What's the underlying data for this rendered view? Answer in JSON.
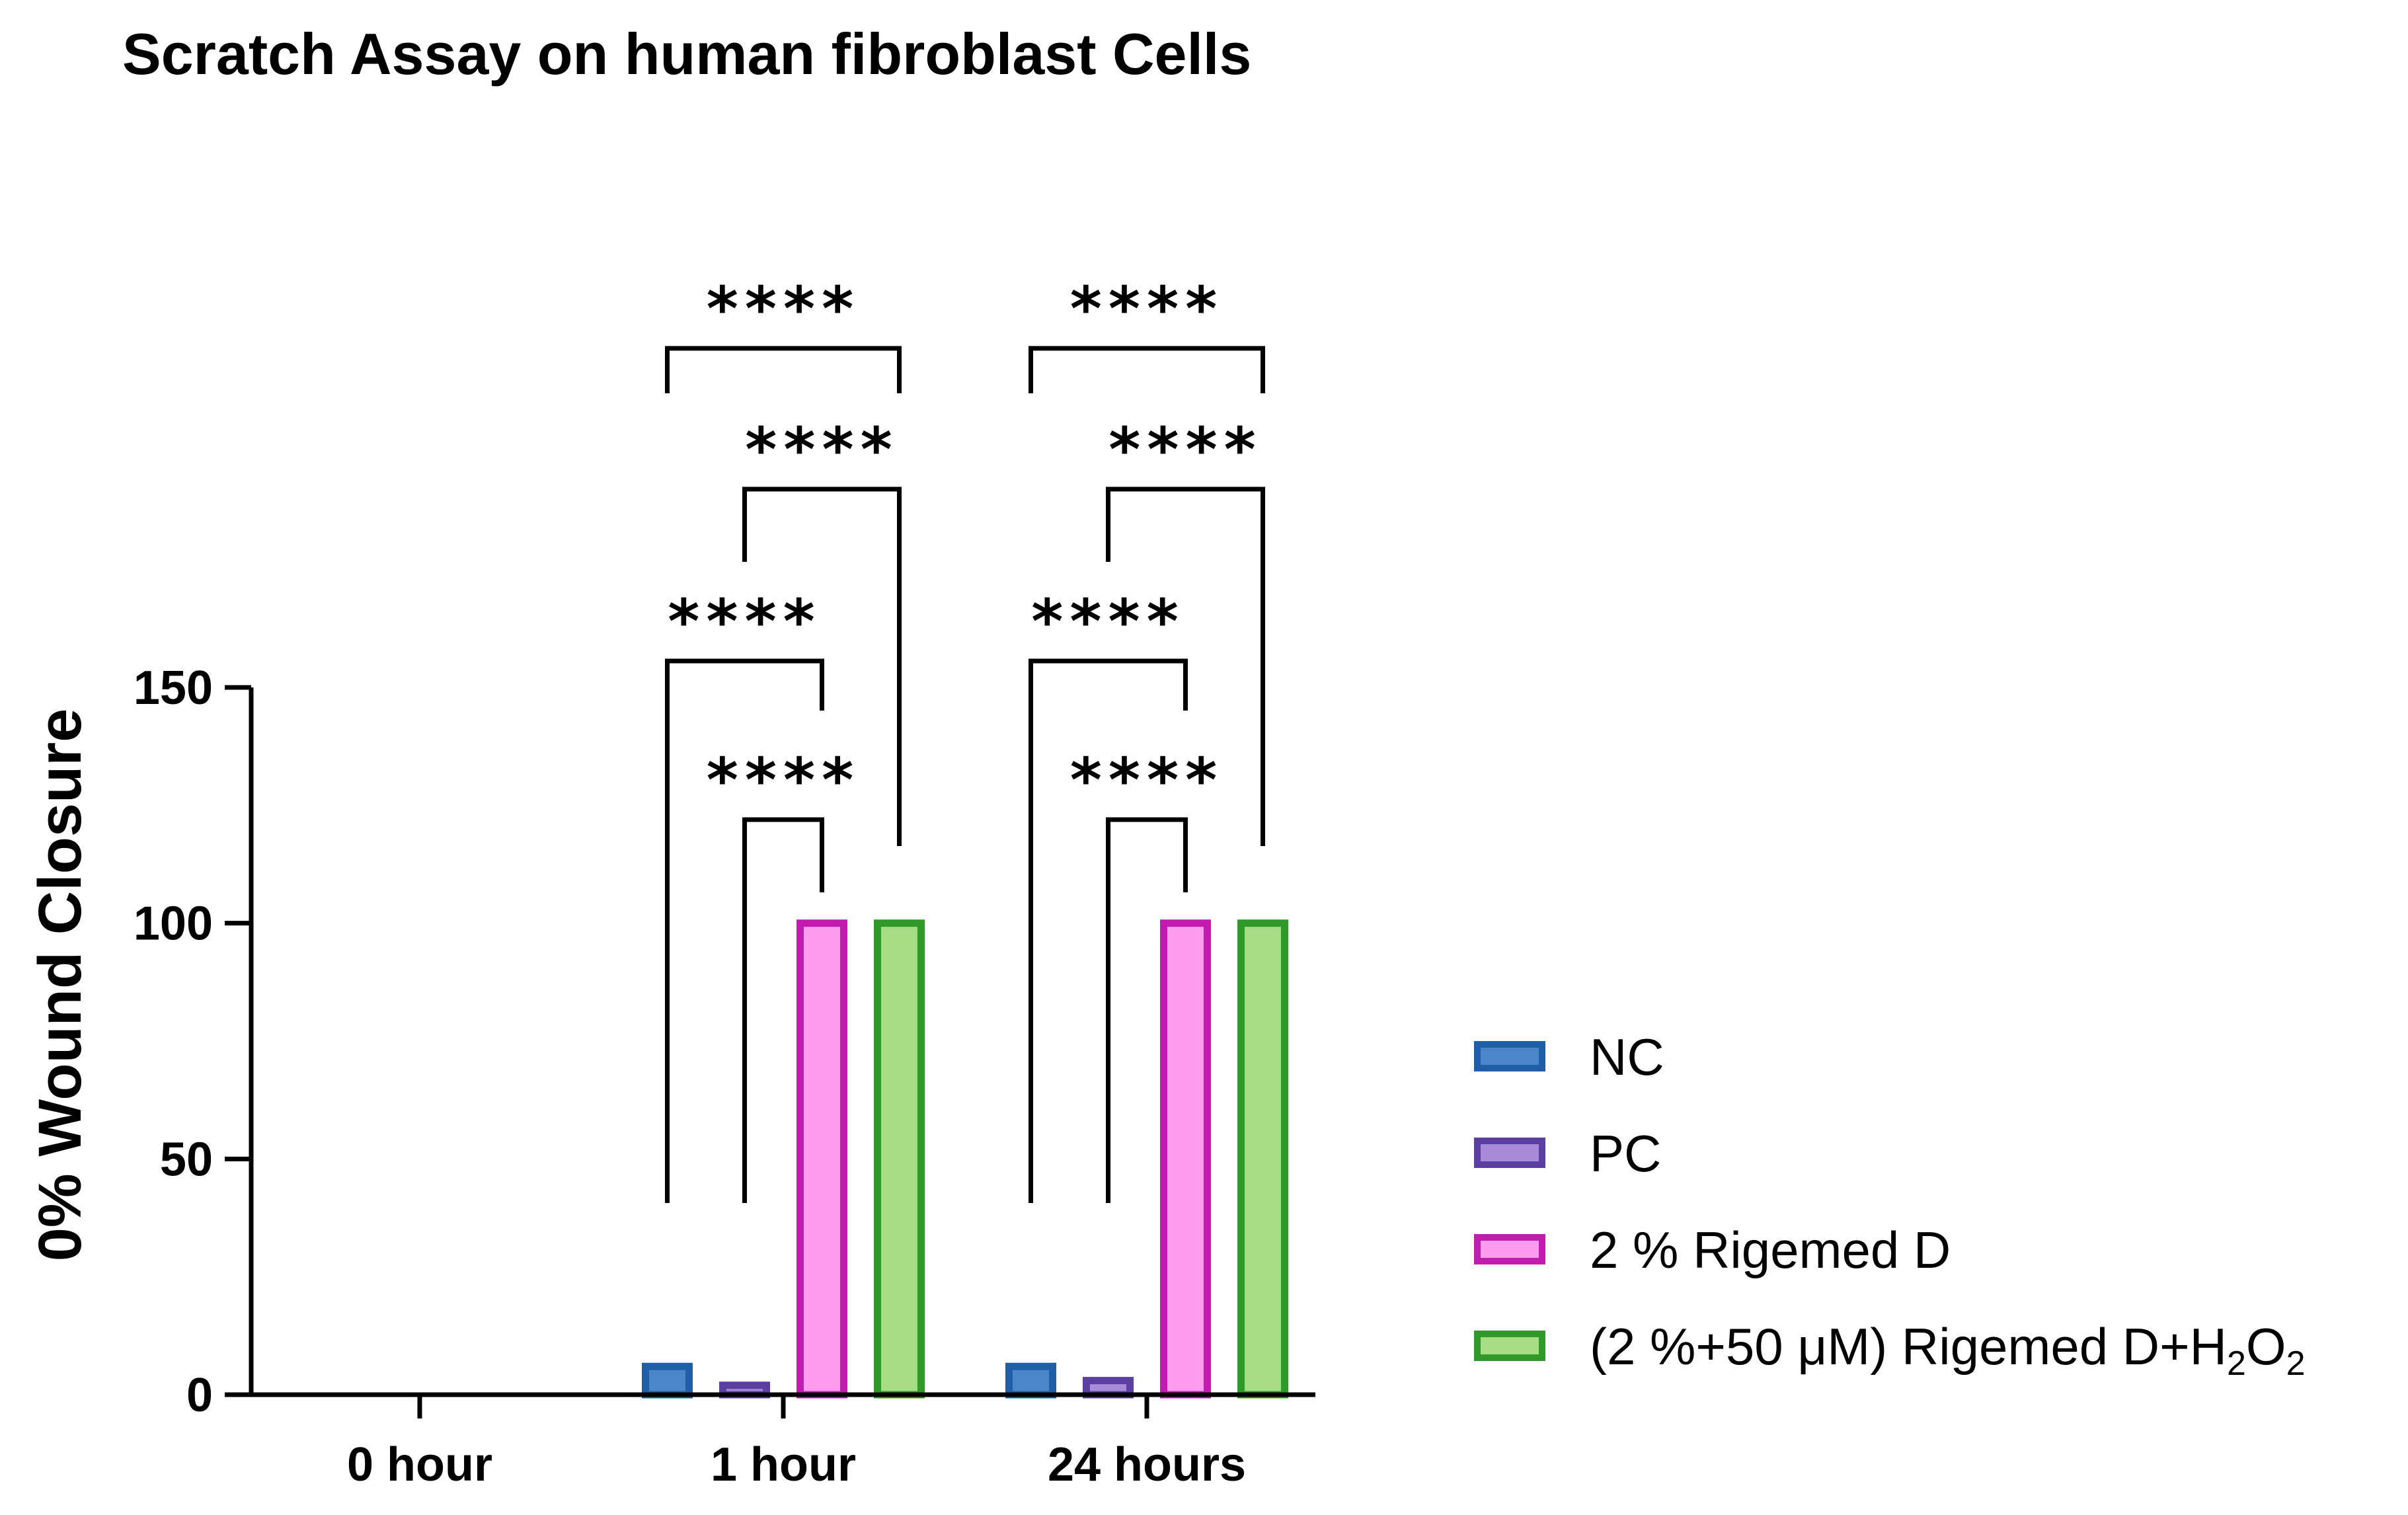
{
  "chart_data": {
    "type": "bar",
    "title": "Scratch Assay on human fibroblast Cells",
    "xlabel": "",
    "ylabel": "0% Wound Closure",
    "ylim": [
      0,
      150
    ],
    "yticks": [
      0,
      50,
      100,
      150
    ],
    "grid": false,
    "legend_position": "right",
    "categories": [
      "0 hour",
      "1 hour",
      "24 hours"
    ],
    "series": [
      {
        "name": "NC",
        "values": [
          0,
          6,
          6
        ],
        "fill": "#4a86c8",
        "stroke": "#1f5fa8"
      },
      {
        "name": "PC",
        "values": [
          0,
          2,
          3
        ],
        "fill": "#a98ad8",
        "stroke": "#5b3fa0"
      },
      {
        "name": "2 % Rigemed D",
        "values": [
          0,
          100,
          100
        ],
        "fill": "#ff9cf0",
        "stroke": "#c21bb0"
      },
      {
        "name_parts": [
          "(2 %+50 μM) Rigemed D+H",
          "2",
          "O",
          "2"
        ],
        "values": [
          0,
          100,
          100
        ],
        "fill": "#a6dc84",
        "stroke": "#2f9a2a"
      }
    ],
    "significance": [
      {
        "category": "1 hour",
        "from": 0,
        "to": 2,
        "label": "****"
      },
      {
        "category": "1 hour",
        "from": 1,
        "to": 2,
        "label": "****"
      },
      {
        "category": "1 hour",
        "from": 1,
        "to": 3,
        "label": "****"
      },
      {
        "category": "1 hour",
        "from": 0,
        "to": 3,
        "label": "****"
      },
      {
        "category": "24 hours",
        "from": 0,
        "to": 2,
        "label": "****"
      },
      {
        "category": "24 hours",
        "from": 1,
        "to": 2,
        "label": "****"
      },
      {
        "category": "24 hours",
        "from": 1,
        "to": 3,
        "label": "****"
      },
      {
        "category": "24 hours",
        "from": 0,
        "to": 3,
        "label": "****"
      }
    ]
  }
}
